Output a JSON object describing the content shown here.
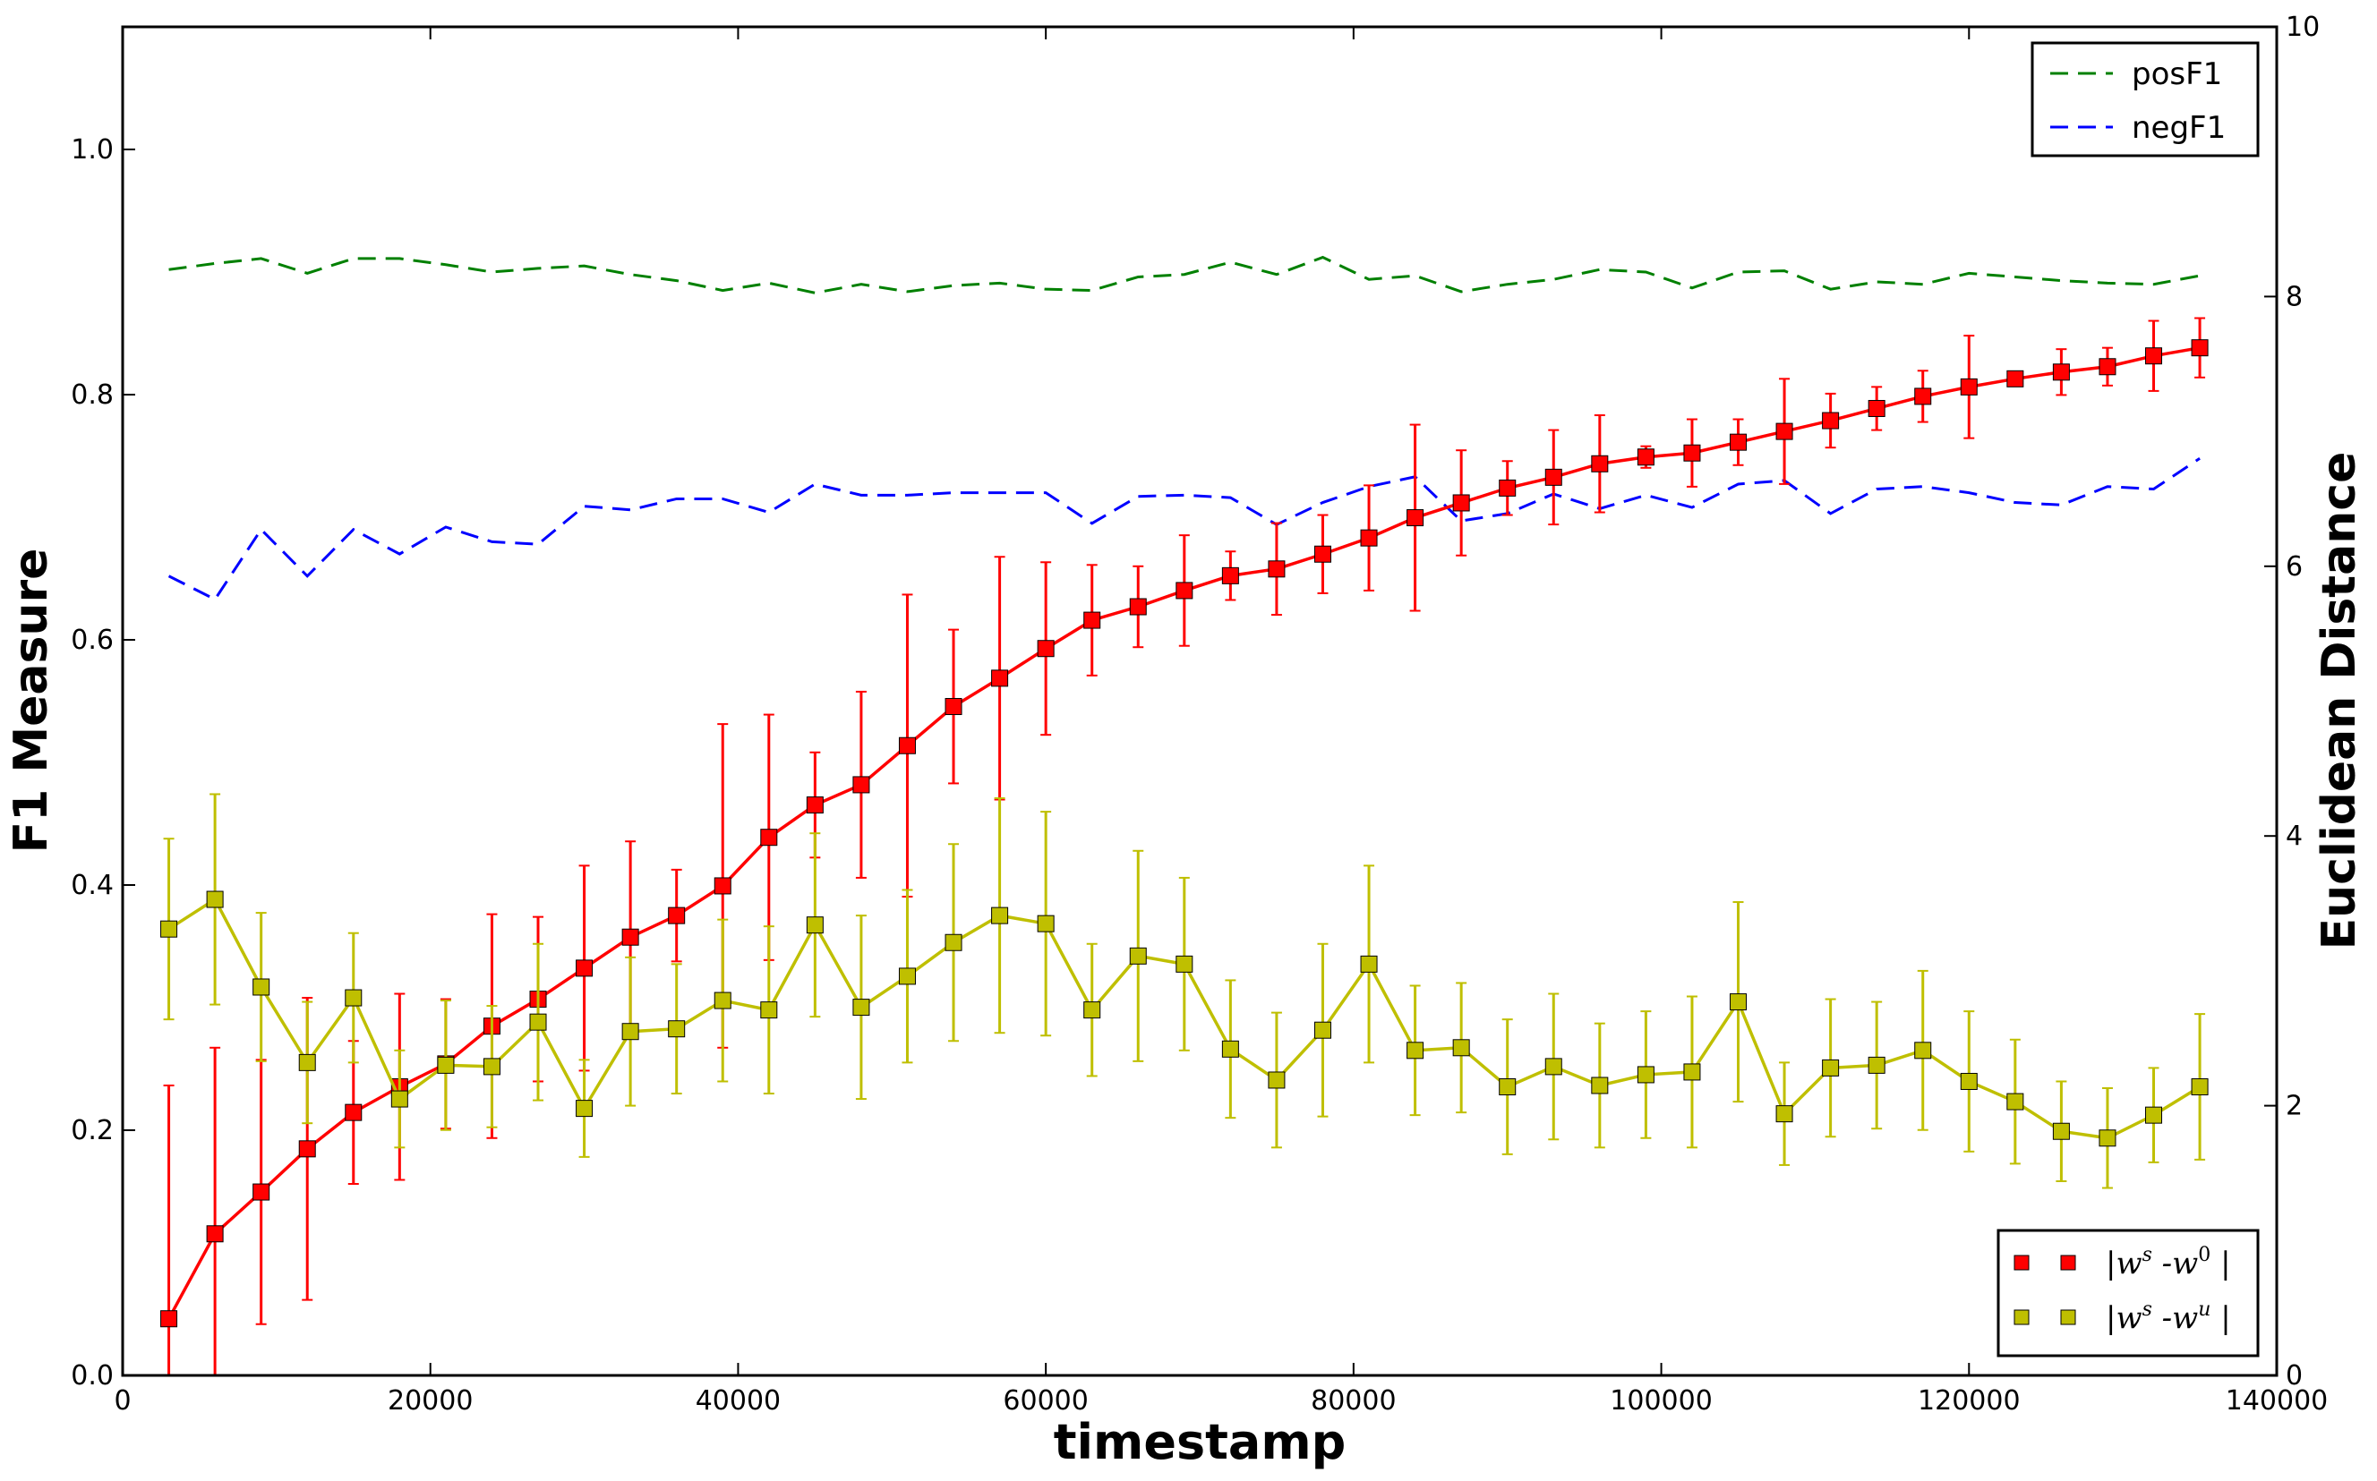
{
  "chart_data": {
    "type": "line",
    "title": "",
    "xlabel": "timestamp",
    "ylabel": "F1 Measure",
    "y2label": "Euclidean Distance",
    "xlim": [
      0,
      140000
    ],
    "ylim": [
      0,
      1.1
    ],
    "y2lim": [
      0,
      10
    ],
    "xticks": [
      0,
      20000,
      40000,
      60000,
      80000,
      100000,
      120000,
      140000
    ],
    "xtick_labels": [
      "0",
      "20000",
      "40000",
      "60000",
      "80000",
      "100000",
      "120000",
      "140000"
    ],
    "yticks": [
      0.0,
      0.2,
      0.4,
      0.6,
      0.8,
      1.0
    ],
    "ytick_labels": [
      "0.0",
      "0.2",
      "0.4",
      "0.6",
      "0.8",
      "1.0"
    ],
    "y2ticks": [
      0,
      2,
      4,
      6,
      8,
      10
    ],
    "y2tick_labels": [
      "0",
      "2",
      "4",
      "6",
      "8",
      "10"
    ],
    "grid": false,
    "x": [
      3000,
      6000,
      9000,
      12000,
      15000,
      18000,
      21000,
      24000,
      27000,
      30000,
      33000,
      36000,
      39000,
      42000,
      45000,
      48000,
      51000,
      54000,
      57000,
      60000,
      63000,
      66000,
      69000,
      72000,
      75000,
      78000,
      81000,
      84000,
      87000,
      90000,
      93000,
      96000,
      99000,
      102000,
      105000,
      108000,
      111000,
      114000,
      117000,
      120000,
      123000,
      126000,
      129000,
      132000,
      135000
    ],
    "series": [
      {
        "name": "posF1",
        "axis": "left",
        "style": "dashed",
        "color": "#008000",
        "values": [
          0.902,
          0.907,
          0.911,
          0.899,
          0.911,
          0.911,
          0.906,
          0.9,
          0.903,
          0.905,
          0.898,
          0.893,
          0.885,
          0.891,
          0.883,
          0.89,
          0.884,
          0.889,
          0.891,
          0.886,
          0.885,
          0.896,
          0.898,
          0.908,
          0.898,
          0.912,
          0.894,
          0.897,
          0.884,
          0.89,
          0.894,
          0.902,
          0.9,
          0.887,
          0.9,
          0.901,
          0.886,
          0.892,
          0.89,
          0.899,
          0.896,
          0.893,
          0.891,
          0.89,
          0.897
        ]
      },
      {
        "name": "negF1",
        "axis": "left",
        "style": "dashed",
        "color": "#0000ff",
        "values": [
          0.652,
          0.633,
          0.69,
          0.652,
          0.69,
          0.67,
          0.692,
          0.68,
          0.678,
          0.709,
          0.706,
          0.715,
          0.715,
          0.704,
          0.727,
          0.718,
          0.718,
          0.72,
          0.72,
          0.72,
          0.695,
          0.717,
          0.718,
          0.716,
          0.694,
          0.712,
          0.725,
          0.733,
          0.697,
          0.703,
          0.719,
          0.707,
          0.718,
          0.708,
          0.727,
          0.73,
          0.703,
          0.723,
          0.725,
          0.72,
          0.712,
          0.71,
          0.725,
          0.723,
          0.748
        ]
      },
      {
        "name": "|w^s - w^0|",
        "axis": "right",
        "style": "solid-square-markers",
        "color": "#ff0000",
        "values": [
          0.42,
          1.05,
          1.36,
          1.68,
          1.95,
          2.14,
          2.31,
          2.59,
          2.79,
          3.02,
          3.25,
          3.41,
          3.63,
          3.99,
          4.23,
          4.38,
          4.67,
          4.96,
          5.17,
          5.39,
          5.6,
          5.7,
          5.82,
          5.93,
          5.98,
          6.09,
          6.21,
          6.36,
          6.47,
          6.58,
          6.66,
          6.76,
          6.81,
          6.84,
          6.92,
          7.0,
          7.08,
          7.17,
          7.26,
          7.33,
          7.39,
          7.44,
          7.48,
          7.56,
          7.62
        ],
        "errors": [
          1.73,
          1.38,
          0.98,
          1.12,
          0.53,
          0.69,
          0.48,
          0.83,
          0.61,
          0.76,
          0.71,
          0.34,
          1.2,
          0.91,
          0.39,
          0.69,
          1.12,
          0.57,
          0.9,
          0.64,
          0.41,
          0.3,
          0.41,
          0.18,
          0.34,
          0.29,
          0.39,
          0.69,
          0.39,
          0.2,
          0.35,
          0.36,
          0.08,
          0.25,
          0.17,
          0.39,
          0.2,
          0.16,
          0.19,
          0.38,
          0.05,
          0.17,
          0.14,
          0.26,
          0.22
        ]
      },
      {
        "name": "|w^s - w^u|",
        "axis": "right",
        "style": "solid-square-markers",
        "color": "#bfbf00",
        "values": [
          3.31,
          3.53,
          2.88,
          2.32,
          2.8,
          2.05,
          2.3,
          2.29,
          2.62,
          1.98,
          2.55,
          2.57,
          2.78,
          2.71,
          3.34,
          2.73,
          2.96,
          3.21,
          3.41,
          3.35,
          2.71,
          3.11,
          3.05,
          2.42,
          2.19,
          2.56,
          3.05,
          2.41,
          2.43,
          2.14,
          2.29,
          2.15,
          2.23,
          2.25,
          2.77,
          1.94,
          2.28,
          2.3,
          2.41,
          2.18,
          2.03,
          1.81,
          1.76,
          1.93,
          2.14
        ],
        "errors": [
          0.67,
          0.78,
          0.55,
          0.45,
          0.48,
          0.36,
          0.48,
          0.45,
          0.58,
          0.36,
          0.55,
          0.48,
          0.6,
          0.62,
          0.68,
          0.68,
          0.64,
          0.73,
          0.87,
          0.83,
          0.49,
          0.78,
          0.64,
          0.51,
          0.5,
          0.64,
          0.73,
          0.48,
          0.48,
          0.5,
          0.54,
          0.46,
          0.47,
          0.56,
          0.74,
          0.38,
          0.51,
          0.47,
          0.59,
          0.52,
          0.46,
          0.37,
          0.37,
          0.35,
          0.54
        ]
      }
    ],
    "legends": [
      {
        "placement": "top-right",
        "items": [
          "posF1",
          "negF1"
        ]
      },
      {
        "placement": "bottom-right",
        "items": [
          "|w^s - w^0|",
          "|w^s - w^u|"
        ]
      }
    ]
  }
}
